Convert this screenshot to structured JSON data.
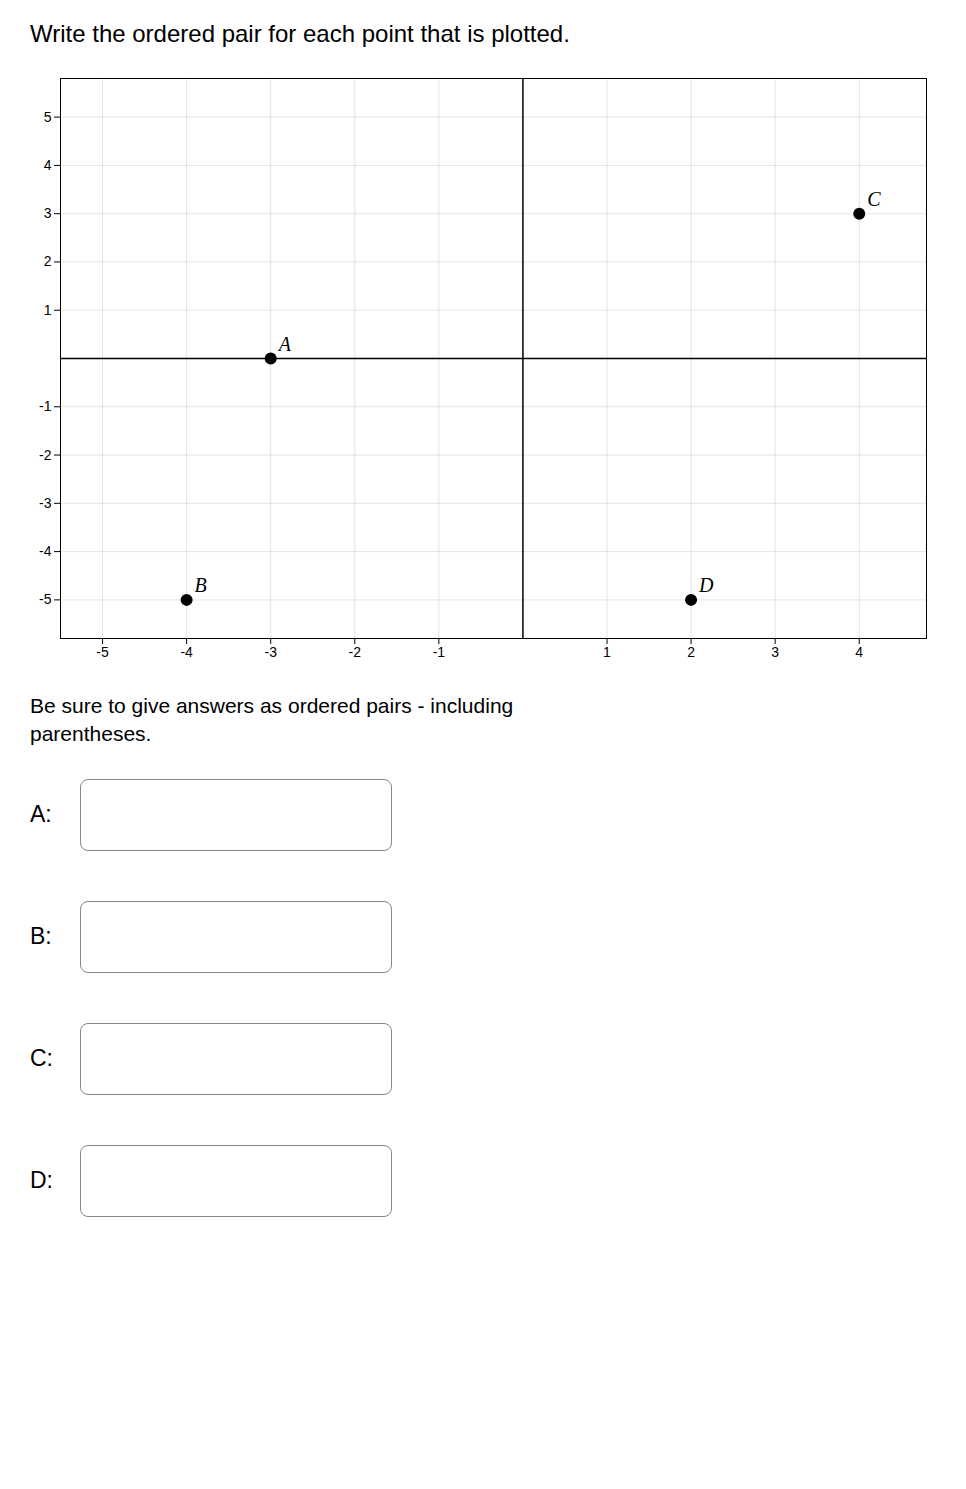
{
  "chart_data": {
    "type": "scatter",
    "title": "Write the ordered pair for each point that is plotted.",
    "subtitle": "Be sure to give answers as ordered pairs - including\nparentheses.",
    "x": [
      -3,
      -4,
      4,
      2
    ],
    "values": [
      0,
      -5,
      3,
      -5
    ],
    "labels": [
      "A",
      "B",
      "C",
      "D"
    ],
    "color": "#000000",
    "xlim": [
      -5.5,
      4.8
    ],
    "ylim": [
      -5.8,
      5.8
    ],
    "xticks": [
      -5,
      -4,
      -3,
      -2,
      -1,
      1,
      2,
      3,
      4
    ],
    "yticks": [
      -5,
      -4,
      -3,
      -2,
      -1,
      1,
      2,
      3,
      4,
      5
    ],
    "grid": true,
    "answer_labels": [
      "A:",
      "B:",
      "C:",
      "D:"
    ]
  }
}
